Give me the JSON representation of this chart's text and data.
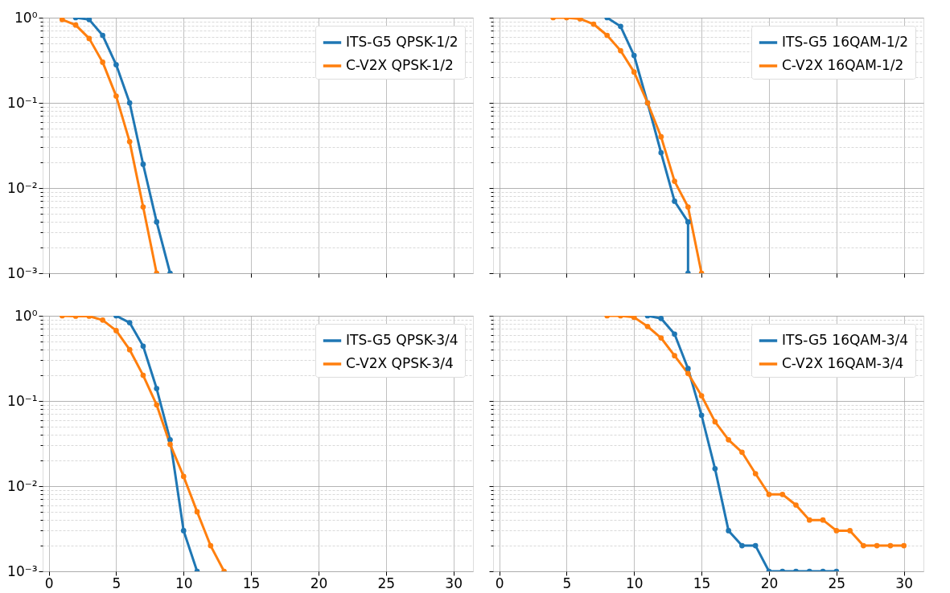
{
  "chart_data": [
    {
      "type": "line",
      "log": true,
      "grid": true,
      "legend": "top right",
      "marker": "circle",
      "line_style": "solid",
      "tick_labels": "y",
      "xlim": [
        -0.45,
        31.45
      ],
      "xticks": [
        {
          "value": 0,
          "label": null
        },
        {
          "value": 5,
          "label": null
        },
        {
          "value": 10,
          "label": null
        },
        {
          "value": 15,
          "label": null
        },
        {
          "value": 20,
          "label": null
        },
        {
          "value": 25,
          "label": null
        },
        {
          "value": 30,
          "label": null
        }
      ],
      "ylim": [
        0.001,
        1
      ],
      "yticks": [
        {
          "value": 0.001,
          "label": "10⁻³"
        },
        {
          "value": 0.002,
          "label": null
        },
        {
          "value": 0.003,
          "label": null
        },
        {
          "value": 0.004,
          "label": null
        },
        {
          "value": 0.005,
          "label": null
        },
        {
          "value": 0.006,
          "label": null
        },
        {
          "value": 0.007,
          "label": null
        },
        {
          "value": 0.008,
          "label": null
        },
        {
          "value": 0.009,
          "label": null
        },
        {
          "value": 0.01,
          "label": "10⁻²"
        },
        {
          "value": 0.02,
          "label": null
        },
        {
          "value": 0.03,
          "label": null
        },
        {
          "value": 0.04,
          "label": null
        },
        {
          "value": 0.05,
          "label": null
        },
        {
          "value": 0.06,
          "label": null
        },
        {
          "value": 0.07,
          "label": null
        },
        {
          "value": 0.08,
          "label": null
        },
        {
          "value": 0.09,
          "label": null
        },
        {
          "value": 0.1,
          "label": "10⁻¹"
        },
        {
          "value": 0.2,
          "label": null
        },
        {
          "value": 0.3,
          "label": null
        },
        {
          "value": 0.4,
          "label": null
        },
        {
          "value": 0.5,
          "label": null
        },
        {
          "value": 0.6,
          "label": null
        },
        {
          "value": 0.7,
          "label": null
        },
        {
          "value": 0.8,
          "label": null
        },
        {
          "value": 0.9,
          "label": null
        },
        {
          "value": 1,
          "label": "10⁰"
        }
      ],
      "series": [
        {
          "name": "ITS-G5 QPSK-1/2",
          "color": "#1f77b4",
          "x": [
            2,
            3,
            4,
            5,
            6,
            7,
            8,
            9
          ],
          "values": [
            1,
            0.95,
            0.62,
            0.28,
            0.1,
            0.019,
            0.004,
            0.001
          ]
        },
        {
          "name": "C-V2X QPSK-1/2",
          "color": "#ff7f0e",
          "x": [
            1,
            2,
            3,
            4,
            5,
            6,
            7,
            8
          ],
          "values": [
            0.95,
            0.82,
            0.57,
            0.3,
            0.12,
            0.035,
            0.006,
            0.001
          ]
        }
      ]
    },
    {
      "type": "line",
      "log": true,
      "grid": true,
      "legend": "top right",
      "marker": "circle",
      "line_style": "solid",
      "tick_labels": false,
      "xlim": [
        -0.45,
        31.45
      ],
      "xticks": [
        {
          "value": 0,
          "label": null
        },
        {
          "value": 5,
          "label": null
        },
        {
          "value": 10,
          "label": null
        },
        {
          "value": 15,
          "label": null
        },
        {
          "value": 20,
          "label": null
        },
        {
          "value": 25,
          "label": null
        },
        {
          "value": 30,
          "label": null
        }
      ],
      "ylim": [
        0.001,
        1
      ],
      "yticks": [
        {
          "value": 0.001,
          "label": null
        },
        {
          "value": 0.002,
          "label": null
        },
        {
          "value": 0.003,
          "label": null
        },
        {
          "value": 0.004,
          "label": null
        },
        {
          "value": 0.005,
          "label": null
        },
        {
          "value": 0.006,
          "label": null
        },
        {
          "value": 0.007,
          "label": null
        },
        {
          "value": 0.008,
          "label": null
        },
        {
          "value": 0.009,
          "label": null
        },
        {
          "value": 0.01,
          "label": null
        },
        {
          "value": 0.02,
          "label": null
        },
        {
          "value": 0.03,
          "label": null
        },
        {
          "value": 0.04,
          "label": null
        },
        {
          "value": 0.05,
          "label": null
        },
        {
          "value": 0.06,
          "label": null
        },
        {
          "value": 0.07,
          "label": null
        },
        {
          "value": 0.08,
          "label": null
        },
        {
          "value": 0.09,
          "label": null
        },
        {
          "value": 0.1,
          "label": null
        },
        {
          "value": 0.2,
          "label": null
        },
        {
          "value": 0.3,
          "label": null
        },
        {
          "value": 0.4,
          "label": null
        },
        {
          "value": 0.5,
          "label": null
        },
        {
          "value": 0.6,
          "label": null
        },
        {
          "value": 0.7,
          "label": null
        },
        {
          "value": 0.8,
          "label": null
        },
        {
          "value": 0.9,
          "label": null
        },
        {
          "value": 1,
          "label": null
        }
      ],
      "series": [
        {
          "name": "ITS-G5 16QAM-1/2",
          "color": "#1f77b4",
          "x": [
            8,
            9,
            10,
            11,
            12,
            13,
            14,
            14
          ],
          "values": [
            1,
            0.79,
            0.36,
            0.1,
            0.026,
            0.007,
            0.004,
            0.001
          ]
        },
        {
          "name": "C-V2X 16QAM-1/2",
          "color": "#ff7f0e",
          "x": [
            4,
            5,
            6,
            7,
            8,
            9,
            10,
            11,
            12,
            13,
            14,
            15
          ],
          "values": [
            1,
            1,
            0.97,
            0.84,
            0.62,
            0.41,
            0.23,
            0.1,
            0.04,
            0.012,
            0.006,
            0.001
          ]
        }
      ]
    },
    {
      "type": "line",
      "log": true,
      "grid": true,
      "legend": "top right",
      "marker": "circle",
      "line_style": "solid",
      "xlim": [
        -0.45,
        31.45
      ],
      "xticks": [
        0,
        5,
        10,
        15,
        20,
        25,
        30
      ],
      "ylim": [
        0.001,
        1
      ],
      "yticks": [
        {
          "value": 0.001,
          "label": "10⁻³"
        },
        {
          "value": 0.002,
          "label": null
        },
        {
          "value": 0.003,
          "label": null
        },
        {
          "value": 0.004,
          "label": null
        },
        {
          "value": 0.005,
          "label": null
        },
        {
          "value": 0.006,
          "label": null
        },
        {
          "value": 0.007,
          "label": null
        },
        {
          "value": 0.008,
          "label": null
        },
        {
          "value": 0.009,
          "label": null
        },
        {
          "value": 0.01,
          "label": "10⁻²"
        },
        {
          "value": 0.02,
          "label": null
        },
        {
          "value": 0.03,
          "label": null
        },
        {
          "value": 0.04,
          "label": null
        },
        {
          "value": 0.05,
          "label": null
        },
        {
          "value": 0.06,
          "label": null
        },
        {
          "value": 0.07,
          "label": null
        },
        {
          "value": 0.08,
          "label": null
        },
        {
          "value": 0.09,
          "label": null
        },
        {
          "value": 0.1,
          "label": "10⁻¹"
        },
        {
          "value": 0.2,
          "label": null
        },
        {
          "value": 0.3,
          "label": null
        },
        {
          "value": 0.4,
          "label": null
        },
        {
          "value": 0.5,
          "label": null
        },
        {
          "value": 0.6,
          "label": null
        },
        {
          "value": 0.7,
          "label": null
        },
        {
          "value": 0.8,
          "label": null
        },
        {
          "value": 0.9,
          "label": null
        },
        {
          "value": 1,
          "label": "10⁰"
        }
      ],
      "series": [
        {
          "name": "ITS-G5 QPSK-3/4",
          "color": "#1f77b4",
          "x": [
            5,
            6,
            7,
            8,
            9,
            10,
            11
          ],
          "values": [
            1,
            0.83,
            0.44,
            0.14,
            0.035,
            0.003,
            0.001
          ]
        },
        {
          "name": "C-V2X QPSK-3/4",
          "color": "#ff7f0e",
          "x": [
            1,
            2,
            3,
            4,
            5,
            6,
            7,
            8,
            9,
            10,
            11,
            12,
            13
          ],
          "values": [
            1,
            0.99,
            0.99,
            0.89,
            0.67,
            0.4,
            0.2,
            0.09,
            0.031,
            0.013,
            0.005,
            0.002,
            0.001
          ]
        }
      ]
    },
    {
      "type": "line",
      "log": true,
      "grid": true,
      "legend": "top right",
      "marker": "circle",
      "line_style": "solid",
      "tick_labels": "x",
      "xlim": [
        -0.45,
        31.45
      ],
      "xticks": [
        0,
        5,
        10,
        15,
        20,
        25,
        30
      ],
      "ylim": [
        0.001,
        1
      ],
      "yticks": [
        {
          "value": 0.001,
          "label": null
        },
        {
          "value": 0.002,
          "label": null
        },
        {
          "value": 0.003,
          "label": null
        },
        {
          "value": 0.004,
          "label": null
        },
        {
          "value": 0.005,
          "label": null
        },
        {
          "value": 0.006,
          "label": null
        },
        {
          "value": 0.007,
          "label": null
        },
        {
          "value": 0.008,
          "label": null
        },
        {
          "value": 0.009,
          "label": null
        },
        {
          "value": 0.01,
          "label": null
        },
        {
          "value": 0.02,
          "label": null
        },
        {
          "value": 0.03,
          "label": null
        },
        {
          "value": 0.04,
          "label": null
        },
        {
          "value": 0.05,
          "label": null
        },
        {
          "value": 0.06,
          "label": null
        },
        {
          "value": 0.07,
          "label": null
        },
        {
          "value": 0.08,
          "label": null
        },
        {
          "value": 0.09,
          "label": null
        },
        {
          "value": 0.1,
          "label": null
        },
        {
          "value": 0.2,
          "label": null
        },
        {
          "value": 0.3,
          "label": null
        },
        {
          "value": 0.4,
          "label": null
        },
        {
          "value": 0.5,
          "label": null
        },
        {
          "value": 0.6,
          "label": null
        },
        {
          "value": 0.7,
          "label": null
        },
        {
          "value": 0.8,
          "label": null
        },
        {
          "value": 0.9,
          "label": null
        },
        {
          "value": 1,
          "label": null
        }
      ],
      "series": [
        {
          "name": "ITS-G5 16QAM-3/4",
          "color": "#1f77b4",
          "x": [
            11,
            12,
            13,
            14,
            15,
            16,
            17,
            18,
            19,
            20,
            21,
            22,
            23,
            24,
            25
          ],
          "values": [
            1,
            0.93,
            0.61,
            0.24,
            0.068,
            0.016,
            0.003,
            0.002,
            0.002,
            0.001,
            0.001,
            0.001,
            0.001,
            0.001,
            0.001
          ]
        },
        {
          "name": "C-V2X 16QAM-3/4",
          "color": "#ff7f0e",
          "x": [
            8,
            9,
            10,
            11,
            12,
            13,
            14,
            15,
            16,
            17,
            18,
            19,
            20,
            21,
            22,
            23,
            24,
            25,
            26,
            27,
            28,
            29,
            30
          ],
          "values": [
            1,
            1,
            0.96,
            0.75,
            0.55,
            0.34,
            0.21,
            0.115,
            0.057,
            0.035,
            0.025,
            0.014,
            0.008,
            0.008,
            0.006,
            0.004,
            0.004,
            0.003,
            0.003,
            0.002,
            0.002,
            0.002,
            0.002
          ]
        }
      ]
    }
  ]
}
